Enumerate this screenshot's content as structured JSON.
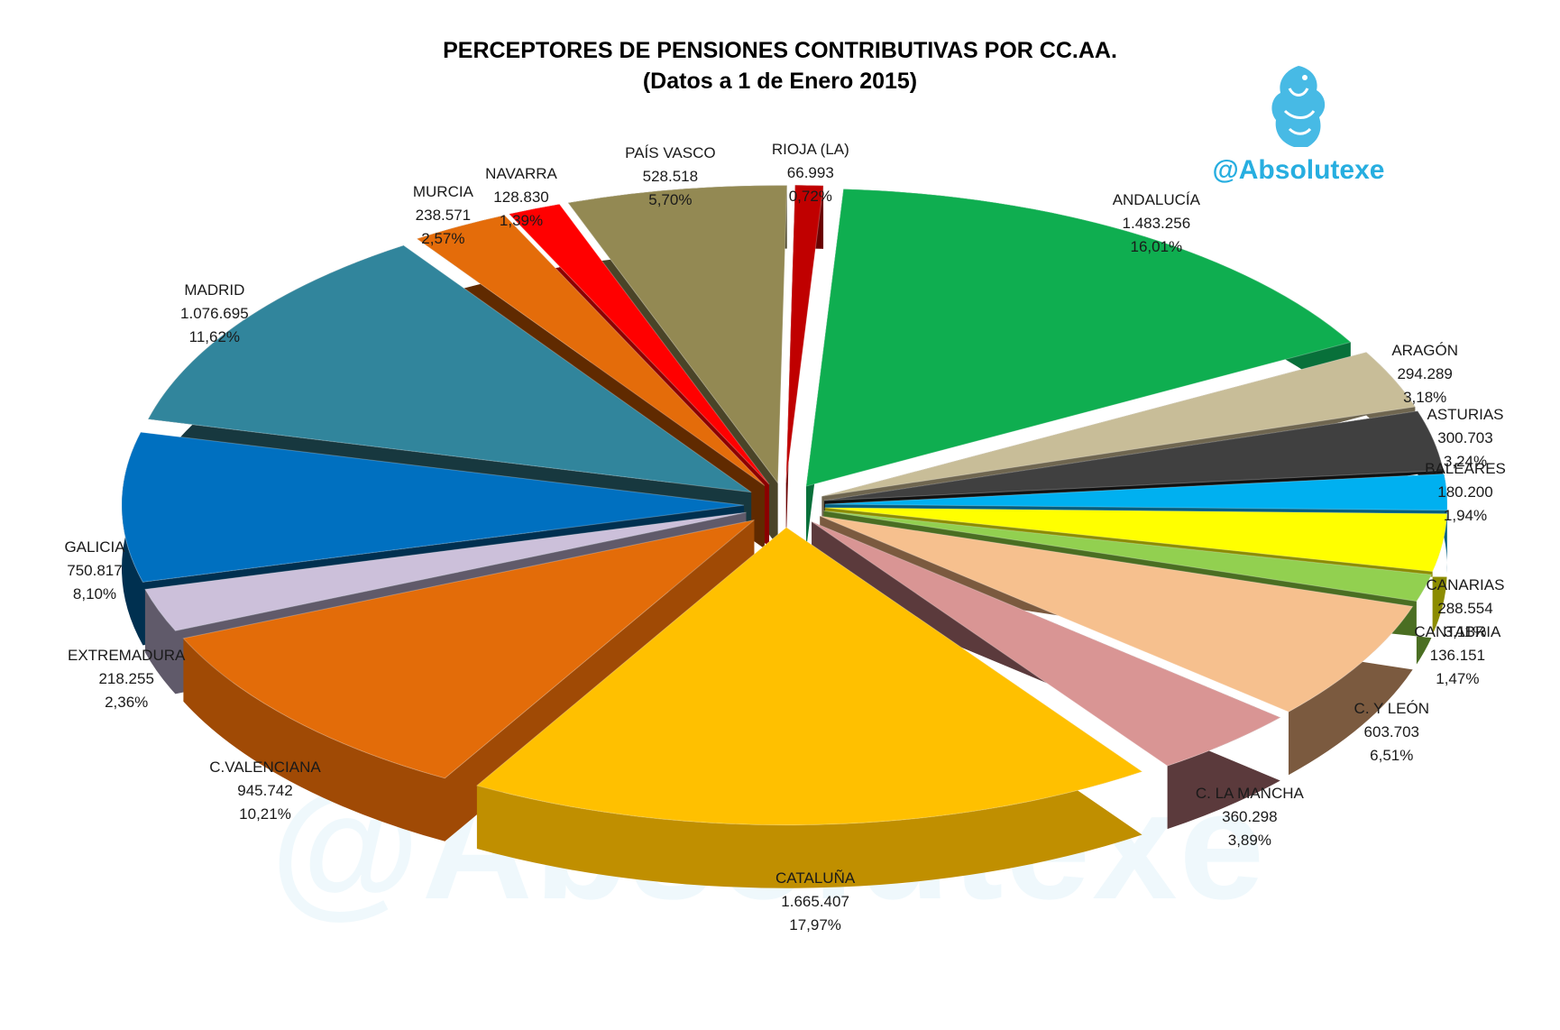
{
  "title_line1": "PERCEPTORES DE PENSIONES CONTRIBUTIVAS POR CC.AA.",
  "title_line2": "(Datos a 1 de Enero 2015)",
  "brand": "@Absolutexe",
  "watermark_text": "@Absolutexe",
  "chart_data": {
    "type": "pie",
    "style": "3d-exploded",
    "title": "PERCEPTORES DE PENSIONES CONTRIBUTIVAS POR CC.AA.",
    "subtitle": "(Datos a 1 de Enero 2015)",
    "slices": [
      {
        "label": "ANDALUCÍA",
        "value_text": "1.483.256",
        "value": 1483256,
        "pct_text": "16,01%",
        "pct": 16.01,
        "color": "#0fae50",
        "side": "#08703a"
      },
      {
        "label": "ARAGÓN",
        "value_text": "294.289",
        "value": 294289,
        "pct_text": "3,18%",
        "pct": 3.18,
        "color": "#c8bd98",
        "side": "#6f6650"
      },
      {
        "label": "ASTURIAS",
        "value_text": "300.703",
        "value": 300703,
        "pct_text": "3,24%",
        "pct": 3.24,
        "color": "#404040",
        "side": "#111111"
      },
      {
        "label": "BALEARES",
        "value_text": "180.200",
        "value": 180200,
        "pct_text": "1,94%",
        "pct": 1.94,
        "color": "#00b0f0",
        "side": "#005e80"
      },
      {
        "label": "CANARIAS",
        "value_text": "288.554",
        "value": 288554,
        "pct_text": "3,11%",
        "pct": 3.11,
        "color": "#ffff00",
        "side": "#8c8c00"
      },
      {
        "label": "CANTABRIA",
        "value_text": "136.151",
        "value": 136151,
        "pct_text": "1,47%",
        "pct": 1.47,
        "color": "#92d050",
        "side": "#4a6e22"
      },
      {
        "label": "C. Y LEÓN",
        "value_text": "603.703",
        "value": 603703,
        "pct_text": "6,51%",
        "pct": 6.51,
        "color": "#f6c08e",
        "side": "#7b5a3f"
      },
      {
        "label": "C. LA MANCHA",
        "value_text": "360.298",
        "value": 360298,
        "pct_text": "3,89%",
        "pct": 3.89,
        "color": "#d99594",
        "side": "#5b3a3c"
      },
      {
        "label": "CATALUÑA",
        "value_text": "1.665.407",
        "value": 1665407,
        "pct_text": "17,97%",
        "pct": 17.97,
        "color": "#ffc000",
        "side": "#c08f00"
      },
      {
        "label": "C.VALENCIANA",
        "value_text": "945.742",
        "value": 945742,
        "pct_text": "10,21%",
        "pct": 10.21,
        "color": "#e36c09",
        "side": "#a04a05"
      },
      {
        "label": "EXTREMADURA",
        "value_text": "218.255",
        "value": 218255,
        "pct_text": "2,36%",
        "pct": 2.36,
        "color": "#ccc0da",
        "side": "#605a6a"
      },
      {
        "label": "GALICIA",
        "value_text": "750.817",
        "value": 750817,
        "pct_text": "8,10%",
        "pct": 8.1,
        "color": "#0070c0",
        "side": "#003050"
      },
      {
        "label": "MADRID",
        "value_text": "1.076.695",
        "value": 1076695,
        "pct_text": "11,62%",
        "pct": 11.62,
        "color": "#31859c",
        "side": "#17383f"
      },
      {
        "label": "MURCIA",
        "value_text": "238.571",
        "value": 238571,
        "pct_text": "2,57%",
        "pct": 2.57,
        "color": "#e46c0a",
        "side": "#602a00"
      },
      {
        "label": "NAVARRA",
        "value_text": "128.830",
        "value": 128830,
        "pct_text": "1,39%",
        "pct": 1.39,
        "color": "#ff0000",
        "side": "#8b0000"
      },
      {
        "label": "PAÍS VASCO",
        "value_text": "528.518",
        "value": 528518,
        "pct_text": "5,70%",
        "pct": 5.7,
        "color": "#938953",
        "side": "#4a4428"
      },
      {
        "label": "RIOJA (LA)",
        "value_text": "66.993",
        "value": 66993,
        "pct_text": "0,72%",
        "pct": 0.72,
        "color": "#c00000",
        "side": "#6a0000"
      }
    ]
  }
}
